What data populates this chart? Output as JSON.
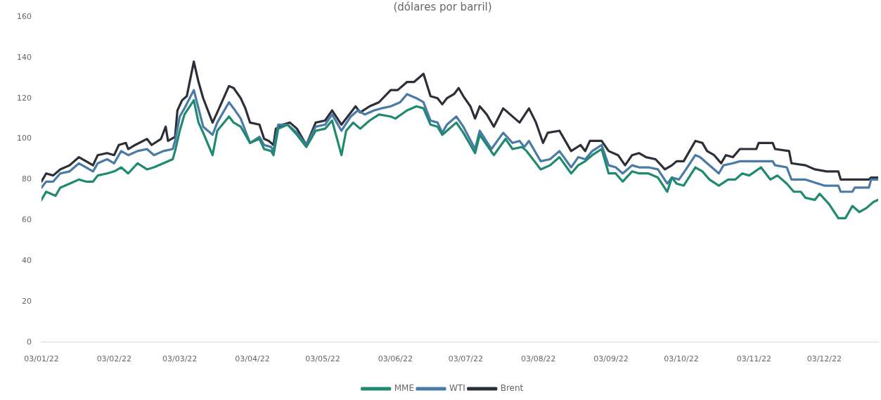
{
  "chart_data": {
    "type": "line",
    "subtitle": "(dólares por barril)",
    "xlim": [
      "2022-01-03",
      "2022-12-26"
    ],
    "xticks": [
      {
        "value": "2022-01-03",
        "label": "03/01/22"
      },
      {
        "value": "2022-02-03",
        "label": "03/02/22"
      },
      {
        "value": "2022-03-03",
        "label": "03/03/22"
      },
      {
        "value": "2022-04-03",
        "label": "03/04/22"
      },
      {
        "value": "2022-05-03",
        "label": "03/05/22"
      },
      {
        "value": "2022-06-03",
        "label": "03/06/22"
      },
      {
        "value": "2022-07-03",
        "label": "03/07/22"
      },
      {
        "value": "2022-08-03",
        "label": "03/08/22"
      },
      {
        "value": "2022-09-03",
        "label": "03/09/22"
      },
      {
        "value": "2022-10-03",
        "label": "03/10/22"
      },
      {
        "value": "2022-11-03",
        "label": "03/11/22"
      },
      {
        "value": "2022-12-03",
        "label": "03/12/22"
      }
    ],
    "ylim": [
      0,
      160
    ],
    "yticks": [
      0,
      20,
      40,
      60,
      80,
      100,
      120,
      140,
      160
    ],
    "legend": "bottom",
    "marker": "none",
    "line_style": "solid",
    "series": [
      {
        "name": "MME",
        "color": "#1f8a70",
        "x": [
          "2022-01-03",
          "2022-01-05",
          "2022-01-09",
          "2022-01-11",
          "2022-01-15",
          "2022-01-19",
          "2022-01-22",
          "2022-01-25",
          "2022-01-27",
          "2022-01-31",
          "2022-02-03",
          "2022-02-06",
          "2022-02-09",
          "2022-02-13",
          "2022-02-17",
          "2022-02-20",
          "2022-02-24",
          "2022-02-28",
          "2022-03-01",
          "2022-03-03",
          "2022-03-05",
          "2022-03-09",
          "2022-03-11",
          "2022-03-13",
          "2022-03-17",
          "2022-03-19",
          "2022-03-24",
          "2022-03-26",
          "2022-03-29",
          "2022-03-31",
          "2022-04-02",
          "2022-04-06",
          "2022-04-08",
          "2022-04-11",
          "2022-04-12",
          "2022-04-14",
          "2022-04-18",
          "2022-04-22",
          "2022-04-26",
          "2022-04-30",
          "2022-05-04",
          "2022-05-07",
          "2022-05-11",
          "2022-05-13",
          "2022-05-16",
          "2022-05-19",
          "2022-05-23",
          "2022-05-27",
          "2022-06-01",
          "2022-06-03",
          "2022-06-08",
          "2022-06-12",
          "2022-06-15",
          "2022-06-18",
          "2022-06-21",
          "2022-06-23",
          "2022-06-25",
          "2022-06-29",
          "2022-07-02",
          "2022-07-07",
          "2022-07-09",
          "2022-07-15",
          "2022-07-20",
          "2022-07-23",
          "2022-07-27",
          "2022-07-29",
          "2022-08-04",
          "2022-08-08",
          "2022-08-12",
          "2022-08-17",
          "2022-08-20",
          "2022-08-23",
          "2022-08-26",
          "2022-08-30",
          "2022-09-02",
          "2022-09-05",
          "2022-09-08",
          "2022-09-12",
          "2022-09-15",
          "2022-09-19",
          "2022-09-23",
          "2022-09-27",
          "2022-09-29",
          "2022-10-01",
          "2022-10-04",
          "2022-10-09",
          "2022-10-12",
          "2022-10-15",
          "2022-10-19",
          "2022-10-23",
          "2022-10-26",
          "2022-10-29",
          "2022-11-01",
          "2022-11-06",
          "2022-11-10",
          "2022-11-13",
          "2022-11-17",
          "2022-11-20",
          "2022-11-23",
          "2022-11-25",
          "2022-11-29",
          "2022-12-01",
          "2022-12-05",
          "2022-12-09",
          "2022-12-12",
          "2022-12-15",
          "2022-12-18",
          "2022-12-21",
          "2022-12-24",
          "2022-12-26"
        ],
        "values": [
          70,
          74,
          72,
          76,
          78,
          80,
          79,
          79,
          82,
          83,
          84,
          86,
          83,
          88,
          85,
          86,
          88,
          90,
          94,
          104,
          112,
          119,
          108,
          103,
          92,
          104,
          111,
          108,
          106,
          102,
          98,
          100,
          95,
          94,
          92,
          105,
          107,
          102,
          96,
          104,
          105,
          109,
          92,
          104,
          108,
          105,
          109,
          112,
          111,
          110,
          114,
          116,
          115,
          107,
          106,
          102,
          104,
          108,
          103,
          93,
          102,
          92,
          100,
          95,
          96,
          94,
          85,
          87,
          91,
          83,
          87,
          89,
          92,
          95,
          83,
          83,
          79,
          84,
          83,
          83,
          81,
          74,
          81,
          78,
          77,
          86,
          84,
          80,
          77,
          80,
          80,
          83,
          82,
          86,
          80,
          82,
          78,
          74,
          74,
          71,
          70,
          73,
          68,
          61,
          61,
          67,
          64,
          66,
          69,
          70
        ]
      },
      {
        "name": "WTI",
        "color": "#4a7aa6",
        "x": [
          "2022-01-03",
          "2022-01-05",
          "2022-01-08",
          "2022-01-11",
          "2022-01-15",
          "2022-01-19",
          "2022-01-22",
          "2022-01-25",
          "2022-01-27",
          "2022-01-31",
          "2022-02-03",
          "2022-02-06",
          "2022-02-09",
          "2022-02-13",
          "2022-02-17",
          "2022-02-20",
          "2022-02-24",
          "2022-02-28",
          "2022-03-01",
          "2022-03-03",
          "2022-03-05",
          "2022-03-09",
          "2022-03-11",
          "2022-03-13",
          "2022-03-17",
          "2022-03-19",
          "2022-03-24",
          "2022-03-26",
          "2022-03-29",
          "2022-03-31",
          "2022-04-02",
          "2022-04-06",
          "2022-04-08",
          "2022-04-11",
          "2022-04-12",
          "2022-04-14",
          "2022-04-18",
          "2022-04-22",
          "2022-04-26",
          "2022-04-30",
          "2022-05-04",
          "2022-05-07",
          "2022-05-11",
          "2022-05-15",
          "2022-05-18",
          "2022-05-21",
          "2022-05-25",
          "2022-05-28",
          "2022-06-01",
          "2022-06-05",
          "2022-06-08",
          "2022-06-12",
          "2022-06-15",
          "2022-06-18",
          "2022-06-21",
          "2022-06-23",
          "2022-06-25",
          "2022-06-29",
          "2022-07-02",
          "2022-07-07",
          "2022-07-09",
          "2022-07-14",
          "2022-07-19",
          "2022-07-23",
          "2022-07-26",
          "2022-07-28",
          "2022-07-30",
          "2022-08-04",
          "2022-08-08",
          "2022-08-12",
          "2022-08-17",
          "2022-08-20",
          "2022-08-23",
          "2022-08-26",
          "2022-08-30",
          "2022-09-02",
          "2022-09-05",
          "2022-09-08",
          "2022-09-12",
          "2022-09-15",
          "2022-09-19",
          "2022-09-23",
          "2022-09-27",
          "2022-09-29",
          "2022-10-02",
          "2022-10-05",
          "2022-10-09",
          "2022-10-11",
          "2022-10-14",
          "2022-10-19",
          "2022-10-21",
          "2022-10-25",
          "2022-10-28",
          "2022-11-04",
          "2022-11-11",
          "2022-11-12",
          "2022-11-17",
          "2022-11-19",
          "2022-11-25",
          "2022-12-03",
          "2022-12-09",
          "2022-12-10",
          "2022-12-15",
          "2022-12-16",
          "2022-12-22",
          "2022-12-23",
          "2022-12-26"
        ],
        "values": [
          76,
          79,
          79,
          83,
          84,
          88,
          86,
          84,
          88,
          90,
          88,
          94,
          92,
          94,
          95,
          92,
          94,
          95,
          99,
          111,
          115,
          124,
          115,
          106,
          102,
          108,
          118,
          115,
          110,
          104,
          98,
          101,
          97,
          96,
          94,
          107,
          107,
          103,
          97,
          106,
          107,
          112,
          104,
          111,
          114,
          112,
          114,
          115,
          116,
          118,
          122,
          120,
          118,
          109,
          108,
          103,
          107,
          111,
          106,
          95,
          104,
          95,
          103,
          98,
          99,
          96,
          99,
          89,
          90,
          94,
          86,
          91,
          90,
          94,
          97,
          87,
          86,
          83,
          87,
          86,
          86,
          85,
          78,
          81,
          80,
          85,
          92,
          91,
          88,
          83,
          87,
          88,
          89,
          89,
          89,
          87,
          86,
          80,
          80,
          77,
          77,
          74,
          74,
          76,
          76,
          80,
          80
        ]
      },
      {
        "name": "Brent",
        "color": "#2b3038",
        "x": [
          "2022-01-03",
          "2022-01-05",
          "2022-01-08",
          "2022-01-11",
          "2022-01-15",
          "2022-01-19",
          "2022-01-22",
          "2022-01-25",
          "2022-01-27",
          "2022-01-31",
          "2022-02-03",
          "2022-02-05",
          "2022-02-08",
          "2022-02-09",
          "2022-02-12",
          "2022-02-17",
          "2022-02-19",
          "2022-02-23",
          "2022-02-25",
          "2022-02-26",
          "2022-03-01",
          "2022-03-02",
          "2022-03-04",
          "2022-03-06",
          "2022-03-09",
          "2022-03-11",
          "2022-03-13",
          "2022-03-17",
          "2022-03-19",
          "2022-03-24",
          "2022-03-26",
          "2022-03-29",
          "2022-03-31",
          "2022-04-02",
          "2022-04-06",
          "2022-04-08",
          "2022-04-10",
          "2022-04-12",
          "2022-04-13",
          "2022-04-16",
          "2022-04-19",
          "2022-04-22",
          "2022-04-26",
          "2022-04-30",
          "2022-05-04",
          "2022-05-07",
          "2022-05-11",
          "2022-05-15",
          "2022-05-17",
          "2022-05-19",
          "2022-05-23",
          "2022-05-27",
          "2022-06-01",
          "2022-06-04",
          "2022-06-08",
          "2022-06-11",
          "2022-06-15",
          "2022-06-18",
          "2022-06-21",
          "2022-06-23",
          "2022-06-25",
          "2022-06-28",
          "2022-06-30",
          "2022-07-02",
          "2022-07-05",
          "2022-07-07",
          "2022-07-09",
          "2022-07-12",
          "2022-07-15",
          "2022-07-19",
          "2022-07-22",
          "2022-07-26",
          "2022-07-30",
          "2022-08-02",
          "2022-08-05",
          "2022-08-07",
          "2022-08-12",
          "2022-08-17",
          "2022-08-21",
          "2022-08-23",
          "2022-08-25",
          "2022-08-30",
          "2022-09-02",
          "2022-09-06",
          "2022-09-09",
          "2022-09-12",
          "2022-09-15",
          "2022-09-18",
          "2022-09-22",
          "2022-09-26",
          "2022-09-29",
          "2022-10-01",
          "2022-10-04",
          "2022-10-09",
          "2022-10-12",
          "2022-10-14",
          "2022-10-17",
          "2022-10-20",
          "2022-10-22",
          "2022-10-25",
          "2022-10-28",
          "2022-11-04",
          "2022-11-05",
          "2022-11-11",
          "2022-11-12",
          "2022-11-18",
          "2022-11-19",
          "2022-11-25",
          "2022-11-29",
          "2022-12-04",
          "2022-12-09",
          "2022-12-10",
          "2022-12-22",
          "2022-12-23",
          "2022-12-26"
        ],
        "values": [
          79,
          83,
          82,
          85,
          87,
          91,
          89,
          87,
          92,
          93,
          92,
          97,
          98,
          95,
          97,
          100,
          97,
          100,
          106,
          99,
          101,
          114,
          119,
          121,
          138,
          128,
          120,
          108,
          113,
          126,
          125,
          120,
          115,
          108,
          107,
          100,
          99,
          97,
          105,
          107,
          108,
          105,
          97,
          108,
          109,
          114,
          107,
          113,
          116,
          113,
          116,
          118,
          124,
          124,
          128,
          128,
          132,
          121,
          120,
          117,
          120,
          122,
          125,
          121,
          116,
          110,
          116,
          112,
          106,
          115,
          112,
          108,
          115,
          108,
          98,
          103,
          104,
          94,
          97,
          94,
          99,
          99,
          94,
          92,
          87,
          92,
          93,
          91,
          90,
          85,
          87,
          89,
          89,
          99,
          98,
          94,
          92,
          88,
          92,
          91,
          95,
          95,
          98,
          98,
          95,
          94,
          88,
          87,
          85,
          84,
          84,
          80,
          80,
          81,
          81
        ]
      }
    ]
  }
}
